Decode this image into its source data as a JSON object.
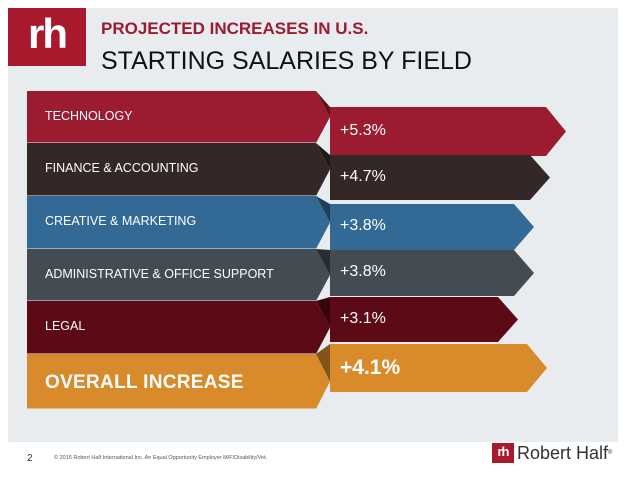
{
  "logo": {
    "text": "rh"
  },
  "header": {
    "subtitle": "PROJECTED INCREASES IN U.S.",
    "title": "STARTING SALARIES BY FIELD"
  },
  "fields": [
    {
      "label": "TECHNOLOGY",
      "value": "+5.3%",
      "color": "#9b1b30",
      "arrow_color": "#9b1b30"
    },
    {
      "label": "FINANCE & ACCOUNTING",
      "value": "+4.7%",
      "color": "#332826",
      "arrow_color": "#332826"
    },
    {
      "label": "CREATIVE & MARKETING",
      "value": "+3.8%",
      "color": "#336a95",
      "arrow_color": "#336a95"
    },
    {
      "label": "ADMINISTRATIVE & OFFICE SUPPORT",
      "value": "+3.8%",
      "color": "#444b52",
      "arrow_color": "#444b52"
    },
    {
      "label": "LEGAL",
      "value": "+3.1%",
      "color": "#5c0a16",
      "arrow_color": "#5c0a16"
    },
    {
      "label": "OVERALL INCREASE",
      "value": "+4.1%",
      "color": "#d98b2b",
      "arrow_color": "#d98b2b"
    }
  ],
  "footer": {
    "page_number": "2",
    "copyright": "© 2015 Robert Half International Inc. An Equal Opportunity Employer M/F/Disability/Vet.",
    "brand_mark": "rh",
    "brand_name": "Robert Half",
    "brand_tm": "®"
  }
}
